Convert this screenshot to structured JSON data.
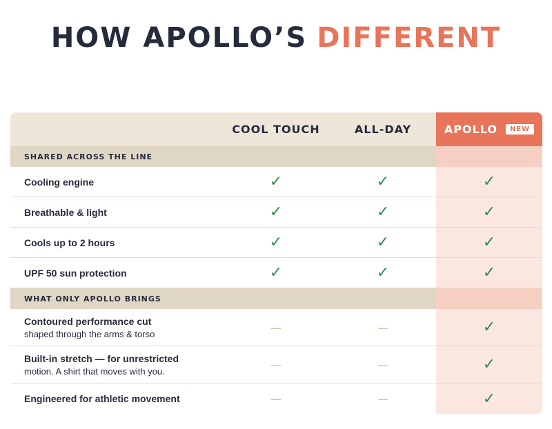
{
  "title": {
    "main": "HOW APOLLO’S",
    "accent": "DIFFERENT"
  },
  "table": {
    "columns": [
      "COOL TOUCH",
      "ALL-DAY",
      "APOLLO"
    ],
    "badge": "NEW",
    "sections": [
      {
        "label": "SHARED ACROSS THE LINE",
        "rows": [
          {
            "label": "Cooling engine",
            "cells": [
              "✓",
              "✓",
              "✓"
            ]
          },
          {
            "label": "Breathable & light",
            "cells": [
              "✓",
              "✓",
              "✓"
            ]
          },
          {
            "label": "Cools up to 2 hours",
            "cells": [
              "✓",
              "✓",
              "✓"
            ]
          },
          {
            "label": "UPF 50 sun protection",
            "cells": [
              "✓",
              "✓",
              "✓"
            ]
          }
        ]
      },
      {
        "label": "WHAT ONLY APOLLO BRINGS",
        "rows": [
          {
            "label": "Contoured performance cut",
            "note": "shaped through the arms & torso",
            "cells": [
              "—",
              "—",
              "✓"
            ]
          },
          {
            "label": "Built-in stretch — for unrestricted",
            "note": "motion. A shirt that moves with you.",
            "cells": [
              "—",
              "—",
              "✓"
            ]
          },
          {
            "label": "Engineered for athletic movement",
            "cells": [
              "—",
              "—",
              "✓"
            ]
          }
        ]
      }
    ]
  }
}
